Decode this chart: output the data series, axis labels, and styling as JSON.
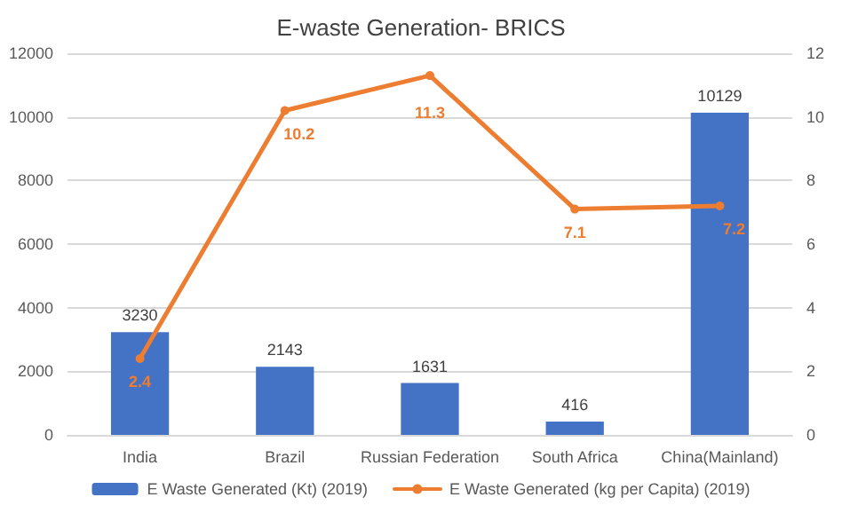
{
  "chart_data": {
    "type": "bar",
    "title": "E-waste Generation- BRICS",
    "categories": [
      "India",
      "Brazil",
      "Russian Federation",
      "South Africa",
      "China(Mainland)"
    ],
    "series": [
      {
        "name": "E Waste Generated (Kt) (2019)",
        "color": "#4472c4",
        "values": [
          3230,
          2143,
          1631,
          416,
          10129
        ]
      },
      {
        "name": "E Waste Generated (kg per Capita) (2019)",
        "type": "line",
        "axis": "y2",
        "color": "#ed7d31",
        "values": [
          2.4,
          10.2,
          11.3,
          7.1,
          7.2
        ]
      }
    ],
    "ylim": [
      0,
      12000
    ],
    "yticks": [
      0,
      2000,
      4000,
      6000,
      8000,
      10000,
      12000
    ],
    "y2lim": [
      0,
      12
    ],
    "y2ticks": [
      0,
      2,
      4,
      6,
      8,
      10,
      12
    ],
    "grid": "y",
    "legend": "bottom",
    "data_labels": true,
    "marker": "circle",
    "line_style": "solid"
  }
}
